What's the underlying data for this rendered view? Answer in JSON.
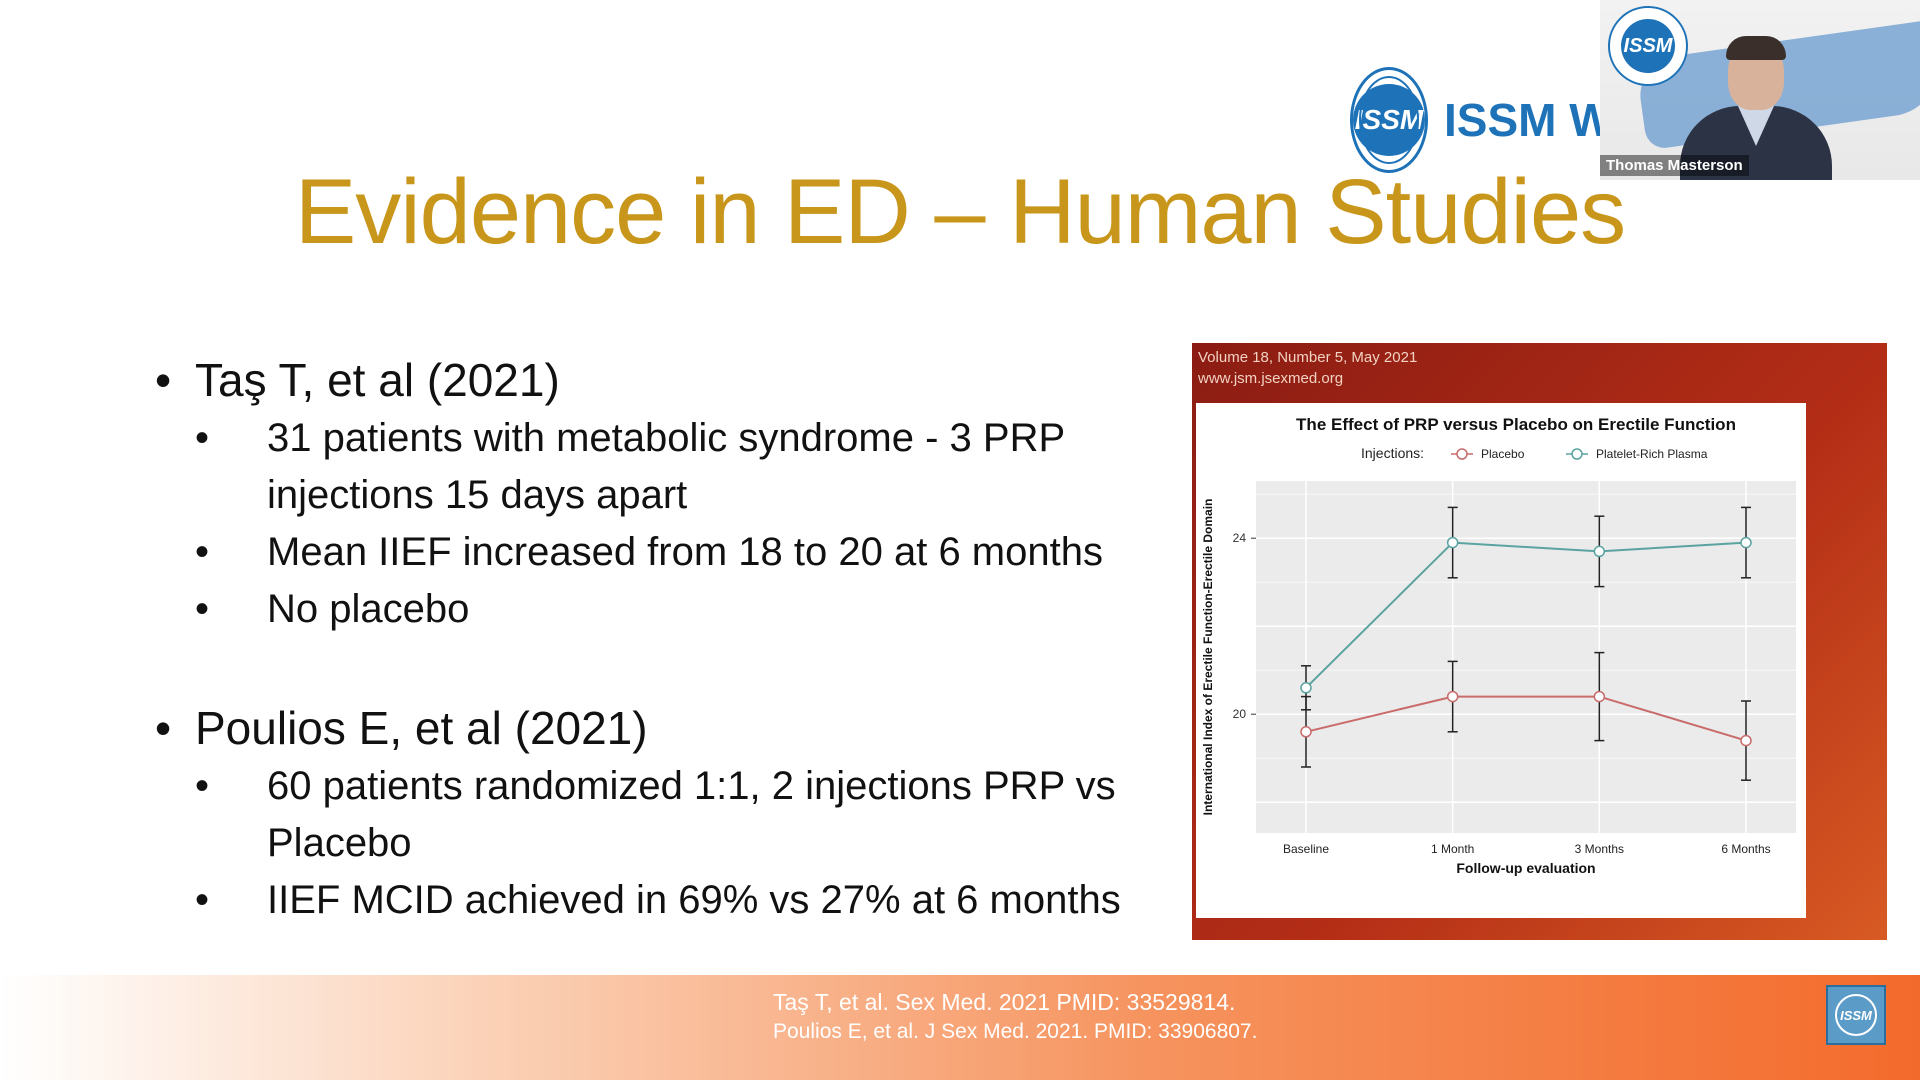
{
  "slide": {
    "title": "Evidence in ED – Human Studies",
    "studies": [
      {
        "heading": "Taş T, et al (2021)",
        "points": [
          "31 patients with metabolic syndrome - 3 PRP injections 15 days apart",
          "Mean IIEF increased from 18 to 20 at 6 months",
          "No placebo"
        ]
      },
      {
        "heading": "Poulios E, et al (2021)",
        "points": [
          "60 patients randomized 1:1, 2 injections PRP vs Placebo",
          "IIEF MCID achieved in 69% vs 27% at 6 months"
        ]
      }
    ],
    "references": [
      "Taş T, et al. Sex Med. 2021 PMID: 33529814.",
      "Poulios E, et al. J Sex Med. 2021. PMID: 33906807."
    ]
  },
  "logo": {
    "seal_text": "ISSM",
    "wordmark": "ISSM W"
  },
  "video": {
    "participant_name": "Thomas Masterson"
  },
  "figure": {
    "journal_issue": "Volume 18, Number 5, May 2021",
    "journal_url": "www.jsm.jsexmed.org"
  },
  "colors": {
    "title": "#c8961a",
    "placebo": "#c96b6b",
    "prp": "#5aa3a0",
    "logo_blue": "#1e73b8"
  },
  "chart_data": {
    "type": "line",
    "title": "The Effect of PRP versus Placebo on Erectile Function",
    "legend_title": "Injections:",
    "legend_position": "top",
    "xlabel": "Follow-up evaluation",
    "ylabel": "International Index of Erectile Function-Erectile Domain",
    "categories": [
      "Baseline",
      "1 Month",
      "3 Months",
      "6 Months"
    ],
    "y_ticks": [
      20,
      24
    ],
    "ylim": [
      17.3,
      25.3
    ],
    "grid": true,
    "series": [
      {
        "name": "Placebo",
        "values": [
          19.6,
          20.4,
          20.4,
          19.4
        ],
        "error": [
          0.8,
          0.8,
          1.0,
          0.9
        ]
      },
      {
        "name": "Platelet-Rich Plasma",
        "values": [
          20.6,
          23.9,
          23.7,
          23.9
        ],
        "error": [
          0.5,
          0.8,
          0.8,
          0.8
        ]
      }
    ]
  }
}
